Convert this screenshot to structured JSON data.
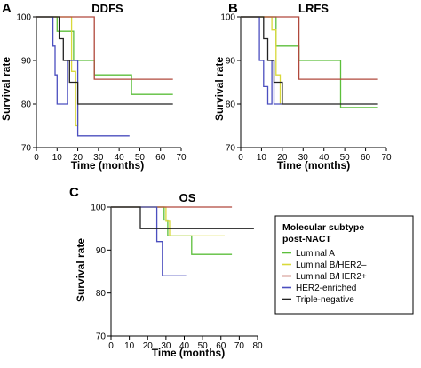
{
  "legend": {
    "title_lines": [
      "Molecular subtype",
      "post-NACT"
    ],
    "entries": [
      {
        "label": "Luminal A",
        "color": "#5cbf3b"
      },
      {
        "label": "Luminal B/HER2–",
        "color": "#d9d93a"
      },
      {
        "label": "Luminal B/HER2+",
        "color": "#b0483c"
      },
      {
        "label": "HER2-enriched",
        "color": "#4b4fbf"
      },
      {
        "label": "Triple-negative",
        "color": "#222222"
      }
    ]
  },
  "chart_data": [
    {
      "type": "line",
      "step": true,
      "panel_letter": "A",
      "title": "DDFS",
      "xlabel": "Time (months)",
      "ylabel": "Survival rate",
      "xlim": [
        0,
        70
      ],
      "ylim": [
        70,
        100
      ],
      "xticks": [
        0,
        10,
        20,
        30,
        40,
        50,
        60,
        70
      ],
      "yticks": [
        70,
        80,
        90,
        100
      ],
      "series": [
        {
          "name": "Luminal A",
          "color": "#5cbf3b",
          "x": [
            0,
            10,
            10,
            18,
            18,
            28,
            28,
            46,
            46,
            66
          ],
          "y": [
            100,
            100,
            96.7,
            96.7,
            90,
            90,
            86.7,
            86.7,
            82.2,
            82.2
          ]
        },
        {
          "name": "Luminal B/HER2–",
          "color": "#d9d93a",
          "x": [
            0,
            17,
            17,
            19,
            19,
            20,
            20,
            21
          ],
          "y": [
            100,
            100,
            87.5,
            87.5,
            75,
            75,
            80,
            80
          ]
        },
        {
          "name": "Luminal B/HER2+",
          "color": "#b0483c",
          "x": [
            0,
            28,
            28,
            66
          ],
          "y": [
            100,
            100,
            85.7,
            85.7
          ]
        },
        {
          "name": "HER2-enriched",
          "color": "#4b4fbf",
          "x": [
            0,
            8,
            8,
            9,
            9,
            10,
            10,
            15,
            15,
            20,
            20,
            45
          ],
          "y": [
            100,
            100,
            93.3,
            93.3,
            86.7,
            86.7,
            80,
            80,
            90,
            90,
            72.7,
            72.7
          ]
        },
        {
          "name": "Triple-negative",
          "color": "#222222",
          "x": [
            0,
            11,
            11,
            13,
            13,
            16,
            16,
            20,
            20,
            66
          ],
          "y": [
            100,
            100,
            95,
            95,
            90,
            90,
            85,
            85,
            80,
            80
          ]
        }
      ]
    },
    {
      "type": "line",
      "step": true,
      "panel_letter": "B",
      "title": "LRFS",
      "xlabel": "Time (months)",
      "ylabel": "Survival rate",
      "xlim": [
        0,
        70
      ],
      "ylim": [
        70,
        100
      ],
      "xticks": [
        0,
        10,
        20,
        30,
        40,
        50,
        60,
        70
      ],
      "yticks": [
        70,
        80,
        90,
        100
      ],
      "series": [
        {
          "name": "Luminal A",
          "color": "#5cbf3b",
          "x": [
            0,
            17,
            17,
            28,
            28,
            48,
            48,
            66
          ],
          "y": [
            100,
            100,
            93.3,
            93.3,
            90,
            90,
            79.2,
            79.2
          ]
        },
        {
          "name": "Luminal B/HER2–",
          "color": "#d9d93a",
          "x": [
            0,
            15,
            15,
            17,
            17,
            19,
            19,
            20
          ],
          "y": [
            100,
            100,
            97,
            97,
            86.7,
            86.7,
            80,
            80
          ]
        },
        {
          "name": "Luminal B/HER2+",
          "color": "#b0483c",
          "x": [
            0,
            28,
            28,
            66
          ],
          "y": [
            100,
            100,
            85.7,
            85.7
          ]
        },
        {
          "name": "HER2-enriched",
          "color": "#4b4fbf",
          "x": [
            0,
            9,
            9,
            11,
            11,
            13,
            13,
            15,
            15,
            16,
            16,
            20
          ],
          "y": [
            100,
            100,
            90,
            90,
            84,
            84,
            80,
            80,
            90,
            90,
            80,
            80
          ]
        },
        {
          "name": "Triple-negative",
          "color": "#222222",
          "x": [
            0,
            11,
            11,
            13,
            13,
            16,
            16,
            20,
            20,
            66
          ],
          "y": [
            100,
            100,
            95,
            95,
            90,
            90,
            85,
            85,
            80,
            80
          ]
        }
      ]
    },
    {
      "type": "line",
      "step": true,
      "panel_letter": "C",
      "title": "OS",
      "xlabel": "Time (months)",
      "ylabel": "Survival rate",
      "xlim": [
        0,
        80
      ],
      "ylim": [
        70,
        100
      ],
      "xticks": [
        0,
        10,
        20,
        30,
        40,
        50,
        60,
        70,
        80
      ],
      "yticks": [
        70,
        80,
        90,
        100
      ],
      "series": [
        {
          "name": "Luminal A",
          "color": "#5cbf3b",
          "x": [
            0,
            29,
            29,
            31,
            31,
            39,
            39,
            44,
            44,
            66
          ],
          "y": [
            100,
            100,
            97,
            97,
            93.3,
            93.3,
            93.3,
            93.3,
            89,
            89
          ]
        },
        {
          "name": "Luminal B/HER2–",
          "color": "#d9d93a",
          "x": [
            0,
            30,
            30,
            32,
            32,
            62
          ],
          "y": [
            100,
            100,
            96.7,
            96.7,
            93.3,
            93.3
          ]
        },
        {
          "name": "Luminal B/HER2+",
          "color": "#b0483c",
          "x": [
            0,
            66
          ],
          "y": [
            100,
            100
          ]
        },
        {
          "name": "HER2-enriched",
          "color": "#4b4fbf",
          "x": [
            0,
            25,
            25,
            28,
            28,
            41
          ],
          "y": [
            100,
            100,
            92,
            92,
            84,
            84
          ]
        },
        {
          "name": "Triple-negative",
          "color": "#222222",
          "x": [
            0,
            16,
            16,
            78
          ],
          "y": [
            100,
            100,
            95,
            95
          ]
        }
      ]
    }
  ]
}
